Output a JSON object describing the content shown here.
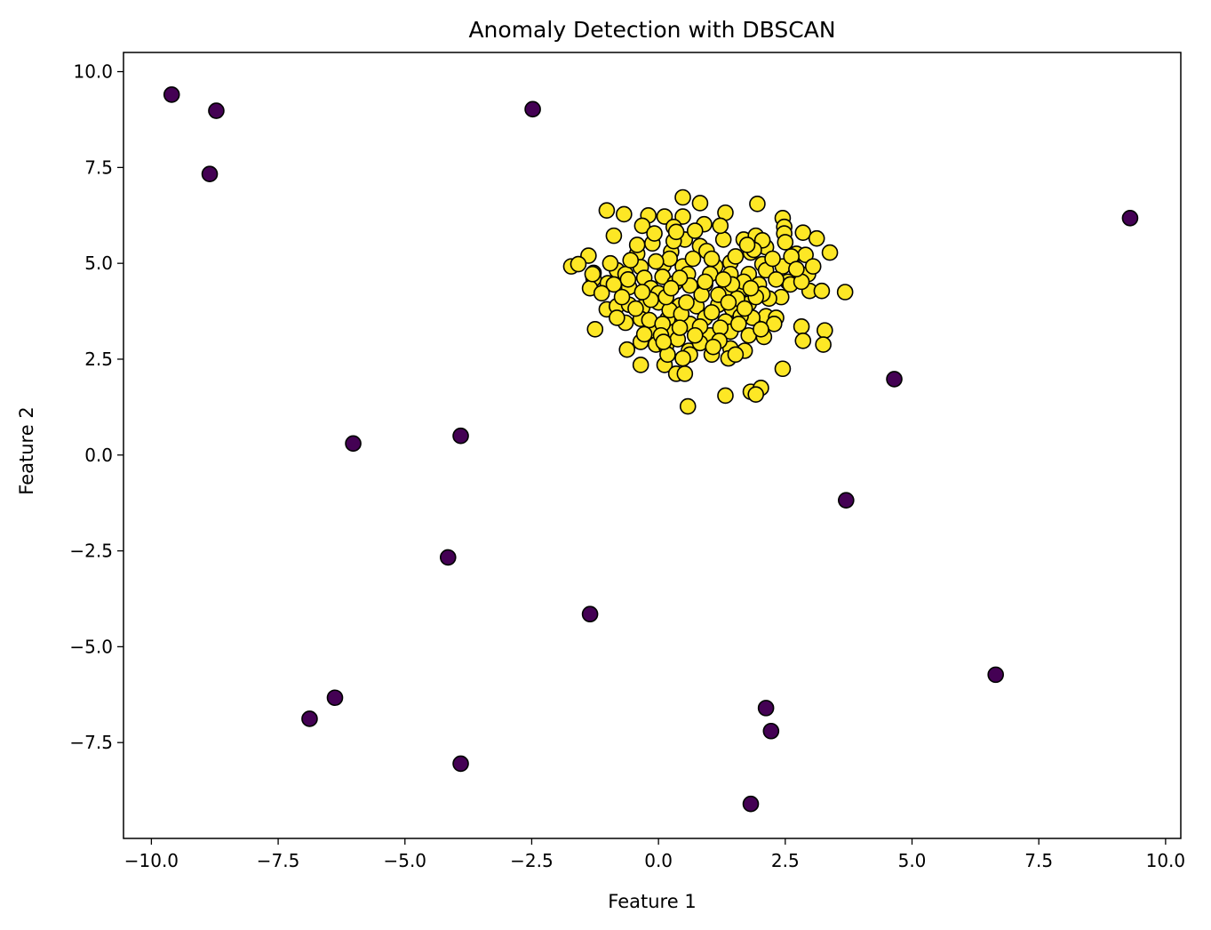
{
  "chart_data": {
    "type": "scatter",
    "title": "Anomaly Detection with DBSCAN",
    "xlabel": "Feature 1",
    "ylabel": "Feature 2",
    "xlim": [
      -10.55,
      10.3
    ],
    "ylim": [
      -10.0,
      10.5
    ],
    "x_ticks": [
      -10.0,
      -7.5,
      -5.0,
      -2.5,
      0.0,
      2.5,
      5.0,
      7.5,
      10.0
    ],
    "x_tick_labels": [
      "−10.0",
      "−7.5",
      "−5.0",
      "−2.5",
      "0.0",
      "2.5",
      "5.0",
      "7.5",
      "10.0"
    ],
    "y_ticks": [
      -7.5,
      -5.0,
      -2.5,
      0.0,
      2.5,
      5.0,
      7.5,
      10.0
    ],
    "y_tick_labels": [
      "−7.5",
      "−5.0",
      "−2.5",
      "0.0",
      "2.5",
      "5.0",
      "7.5",
      "10.0"
    ],
    "grid": false,
    "legend": "none",
    "colors": {
      "core": "#fde725",
      "anomaly": "#440154",
      "edge": "#000000",
      "frame": "#000000",
      "background": "#ffffff"
    },
    "series": [
      {
        "color_key": "anomaly",
        "points": [
          [
            -9.6,
            9.4
          ],
          [
            -8.72,
            8.98
          ],
          [
            -8.85,
            7.33
          ],
          [
            -2.48,
            9.02
          ],
          [
            9.3,
            6.18
          ],
          [
            4.65,
            1.98
          ],
          [
            3.7,
            -1.18
          ],
          [
            -6.02,
            0.3
          ],
          [
            -3.9,
            0.5
          ],
          [
            -4.15,
            -2.67
          ],
          [
            -1.35,
            -4.15
          ],
          [
            6.65,
            -5.73
          ],
          [
            -6.38,
            -6.33
          ],
          [
            -6.88,
            -6.88
          ],
          [
            -3.9,
            -8.05
          ],
          [
            2.12,
            -6.6
          ],
          [
            2.22,
            -7.2
          ],
          [
            1.82,
            -9.1
          ]
        ]
      },
      {
        "color_key": "core",
        "points": [
          [
            0.48,
            6.72
          ],
          [
            0.82,
            6.57
          ],
          [
            1.95,
            6.55
          ],
          [
            -1.02,
            6.38
          ],
          [
            -0.68,
            6.28
          ],
          [
            -0.2,
            6.25
          ],
          [
            0.12,
            6.22
          ],
          [
            0.48,
            6.22
          ],
          [
            1.32,
            6.32
          ],
          [
            2.45,
            6.18
          ],
          [
            -0.32,
            5.98
          ],
          [
            0.3,
            5.95
          ],
          [
            0.9,
            6.02
          ],
          [
            2.48,
            5.95
          ],
          [
            2.85,
            5.8
          ],
          [
            3.12,
            5.65
          ],
          [
            -0.88,
            5.72
          ],
          [
            -0.12,
            5.52
          ],
          [
            0.52,
            5.62
          ],
          [
            1.28,
            5.62
          ],
          [
            1.68,
            5.62
          ],
          [
            1.92,
            5.72
          ],
          [
            2.12,
            5.42
          ],
          [
            2.48,
            5.78
          ],
          [
            0.82,
            5.45
          ],
          [
            0.25,
            5.3
          ],
          [
            -0.42,
            5.25
          ],
          [
            -1.38,
            5.2
          ],
          [
            -1.72,
            4.92
          ],
          [
            -1.58,
            4.98
          ],
          [
            -0.82,
            4.82
          ],
          [
            -0.35,
            4.9
          ],
          [
            0.1,
            4.95
          ],
          [
            0.48,
            4.92
          ],
          [
            1.12,
            4.92
          ],
          [
            1.42,
            5.02
          ],
          [
            1.82,
            5.28
          ],
          [
            2.05,
            4.98
          ],
          [
            2.45,
            4.92
          ],
          [
            2.72,
            5.25
          ],
          [
            2.9,
            5.22
          ],
          [
            3.38,
            5.28
          ],
          [
            -1.28,
            4.75
          ],
          [
            -1.28,
            4.6
          ],
          [
            -0.65,
            4.72
          ],
          [
            -0.28,
            4.62
          ],
          [
            0.08,
            4.65
          ],
          [
            0.58,
            4.72
          ],
          [
            1.02,
            4.72
          ],
          [
            1.42,
            4.72
          ],
          [
            1.78,
            4.72
          ],
          [
            2.12,
            4.82
          ],
          [
            2.55,
            4.52
          ],
          [
            2.95,
            4.72
          ],
          [
            -1.35,
            4.35
          ],
          [
            -1.0,
            4.48
          ],
          [
            -0.58,
            4.38
          ],
          [
            -0.15,
            4.35
          ],
          [
            0.32,
            4.48
          ],
          [
            0.62,
            4.42
          ],
          [
            0.92,
            4.45
          ],
          [
            1.3,
            4.28
          ],
          [
            1.62,
            4.32
          ],
          [
            1.98,
            4.45
          ],
          [
            2.42,
            4.12
          ],
          [
            2.98,
            4.28
          ],
          [
            3.22,
            4.28
          ],
          [
            3.68,
            4.25
          ],
          [
            -1.02,
            3.8
          ],
          [
            -0.82,
            3.88
          ],
          [
            -0.58,
            3.92
          ],
          [
            -0.32,
            3.85
          ],
          [
            0.0,
            3.98
          ],
          [
            0.42,
            3.9
          ],
          [
            0.75,
            3.88
          ],
          [
            1.18,
            3.92
          ],
          [
            1.45,
            3.82
          ],
          [
            1.78,
            3.95
          ],
          [
            2.12,
            3.62
          ],
          [
            -0.65,
            3.45
          ],
          [
            -0.35,
            3.55
          ],
          [
            0.18,
            3.55
          ],
          [
            0.52,
            3.45
          ],
          [
            0.92,
            3.58
          ],
          [
            1.32,
            3.48
          ],
          [
            1.85,
            3.58
          ],
          [
            2.32,
            3.58
          ],
          [
            -1.25,
            3.28
          ],
          [
            -0.12,
            3.25
          ],
          [
            0.32,
            3.22
          ],
          [
            0.72,
            3.28
          ],
          [
            1.02,
            3.12
          ],
          [
            1.42,
            3.22
          ],
          [
            1.78,
            3.12
          ],
          [
            2.08,
            3.08
          ],
          [
            2.82,
            3.35
          ],
          [
            3.28,
            3.25
          ],
          [
            -0.62,
            2.75
          ],
          [
            -0.35,
            2.95
          ],
          [
            -0.05,
            2.88
          ],
          [
            0.15,
            2.85
          ],
          [
            0.6,
            2.72
          ],
          [
            1.05,
            2.62
          ],
          [
            1.42,
            2.78
          ],
          [
            2.85,
            2.98
          ],
          [
            3.25,
            2.88
          ],
          [
            -0.35,
            2.35
          ],
          [
            0.12,
            2.35
          ],
          [
            0.35,
            2.12
          ],
          [
            0.52,
            2.12
          ],
          [
            1.38,
            2.52
          ],
          [
            2.45,
            2.25
          ],
          [
            1.32,
            1.55
          ],
          [
            1.82,
            1.65
          ],
          [
            2.02,
            1.75
          ],
          [
            1.92,
            1.58
          ],
          [
            0.58,
            1.27
          ],
          [
            -1.3,
            4.72
          ],
          [
            -0.55,
            5.08
          ],
          [
            0.22,
            5.12
          ],
          [
            0.68,
            5.12
          ],
          [
            1.68,
            4.52
          ],
          [
            -0.88,
            4.45
          ],
          [
            0.0,
            4.22
          ],
          [
            1.18,
            4.18
          ],
          [
            2.18,
            4.08
          ],
          [
            -0.45,
            3.82
          ],
          [
            0.22,
            3.78
          ],
          [
            1.62,
            3.62
          ],
          [
            2.28,
            3.42
          ],
          [
            -0.18,
            3.52
          ],
          [
            0.62,
            3.42
          ],
          [
            1.22,
            3.32
          ],
          [
            0.38,
            3.02
          ],
          [
            0.82,
            2.92
          ],
          [
            1.2,
            2.98
          ],
          [
            0.18,
            2.62
          ],
          [
            0.62,
            2.62
          ],
          [
            0.95,
            5.32
          ],
          [
            1.52,
            5.18
          ],
          [
            -0.05,
            5.05
          ],
          [
            0.42,
            4.62
          ],
          [
            0.85,
            4.18
          ],
          [
            1.55,
            4.08
          ],
          [
            -0.15,
            4.05
          ],
          [
            2.05,
            4.2
          ],
          [
            1.05,
            3.72
          ],
          [
            0.45,
            3.68
          ],
          [
            1.7,
            3.82
          ],
          [
            2.6,
            4.45
          ],
          [
            -0.72,
            4.12
          ],
          [
            0.72,
            5.85
          ],
          [
            1.22,
            5.98
          ],
          [
            2.05,
            5.6
          ],
          [
            -0.08,
            5.78
          ],
          [
            0.3,
            5.58
          ],
          [
            1.05,
            5.12
          ],
          [
            1.45,
            4.45
          ],
          [
            2.32,
            4.58
          ],
          [
            -0.32,
            4.25
          ],
          [
            0.15,
            4.12
          ],
          [
            0.55,
            3.98
          ],
          [
            1.38,
            3.98
          ],
          [
            1.92,
            4.12
          ],
          [
            2.82,
            4.52
          ],
          [
            -0.82,
            3.58
          ],
          [
            0.08,
            3.42
          ],
          [
            0.82,
            3.35
          ],
          [
            1.58,
            3.42
          ],
          [
            0.42,
            3.32
          ],
          [
            1.08,
            2.82
          ],
          [
            1.7,
            2.72
          ],
          [
            0.05,
            3.12
          ],
          [
            2.62,
            5.18
          ],
          [
            3.05,
            4.92
          ],
          [
            -0.42,
            5.48
          ],
          [
            1.88,
            5.35
          ],
          [
            0.35,
            5.82
          ],
          [
            2.25,
            5.12
          ],
          [
            -1.12,
            4.22
          ],
          [
            0.92,
            4.52
          ],
          [
            1.28,
            4.58
          ],
          [
            2.5,
            5.55
          ],
          [
            -0.6,
            4.58
          ],
          [
            0.25,
            4.35
          ],
          [
            1.82,
            4.35
          ],
          [
            -0.28,
            3.15
          ],
          [
            0.72,
            3.12
          ],
          [
            2.02,
            3.28
          ],
          [
            1.52,
            2.62
          ],
          [
            0.1,
            2.95
          ],
          [
            0.48,
            2.52
          ],
          [
            2.72,
            4.85
          ],
          [
            -0.95,
            5.0
          ],
          [
            1.75,
            5.48
          ]
        ]
      }
    ]
  }
}
